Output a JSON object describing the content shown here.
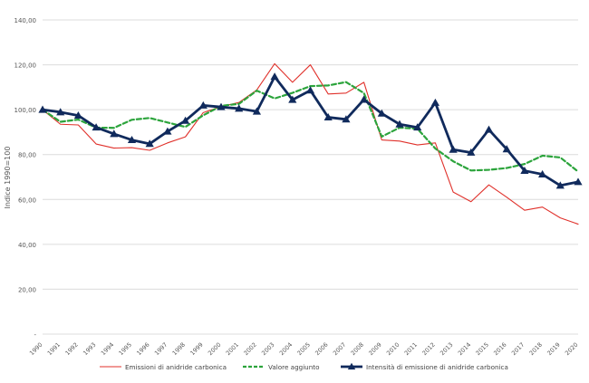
{
  "chart_data": {
    "type": "line",
    "ylabel": "Indice 1990=100",
    "ylim": [
      0,
      140
    ],
    "y_ticks": [
      0,
      20,
      40,
      60,
      80,
      100,
      120,
      140
    ],
    "y_tick_labels": [
      "-",
      "20,00",
      "40,00",
      "60,00",
      "80,00",
      "100,00",
      "120,00",
      "140,00"
    ],
    "grid": "horizontal",
    "legend_position": "bottom",
    "categories": [
      "1990",
      "1991",
      "1992",
      "1993",
      "1994",
      "1995",
      "1996",
      "1997",
      "1998",
      "1999",
      "2000",
      "2001",
      "2002",
      "2003",
      "2004",
      "2005",
      "2006",
      "2007",
      "2008",
      "2009",
      "2010",
      "2011",
      "2012",
      "2013",
      "2014",
      "2015",
      "2016",
      "2017",
      "2018",
      "2019",
      "2020"
    ],
    "series": [
      {
        "name": "Emissioni di anidride carbonica",
        "color": "#e0312b",
        "style": "solid-thin",
        "values": [
          100.0,
          93.5,
          93.2,
          84.7,
          82.9,
          83.1,
          81.9,
          85.2,
          87.9,
          98.7,
          101.4,
          103.2,
          108.8,
          120.5,
          112.2,
          120.0,
          107.0,
          107.4,
          112.2,
          86.5,
          86.0,
          84.3,
          85.2,
          63.3,
          59.0,
          66.5,
          61.0,
          55.2,
          56.6,
          51.8,
          49.0
        ]
      },
      {
        "name": "Valore aggiunto",
        "color": "#2ca43c",
        "style": "dashed",
        "values": [
          100.0,
          94.6,
          95.6,
          92.0,
          91.9,
          95.5,
          96.3,
          94.3,
          92.3,
          97.5,
          101.7,
          102.6,
          108.5,
          105.0,
          107.5,
          110.5,
          110.8,
          112.3,
          107.4,
          88.0,
          92.0,
          91.5,
          82.7,
          77.0,
          72.9,
          73.2,
          74.0,
          75.8,
          79.5,
          78.7,
          72.4
        ]
      },
      {
        "name": "Intensità di emissione di anidride carbonica",
        "color": "#102a5c",
        "style": "thick-triangle-markers",
        "values": [
          100.0,
          98.9,
          97.4,
          92.1,
          89.2,
          86.5,
          84.8,
          90.3,
          95.1,
          101.9,
          101.2,
          100.5,
          99.2,
          114.7,
          104.4,
          108.6,
          96.6,
          95.7,
          104.5,
          98.3,
          93.5,
          92.1,
          103.1,
          82.2,
          80.9,
          91.1,
          82.4,
          72.8,
          71.2,
          66.2,
          67.8
        ]
      }
    ]
  }
}
